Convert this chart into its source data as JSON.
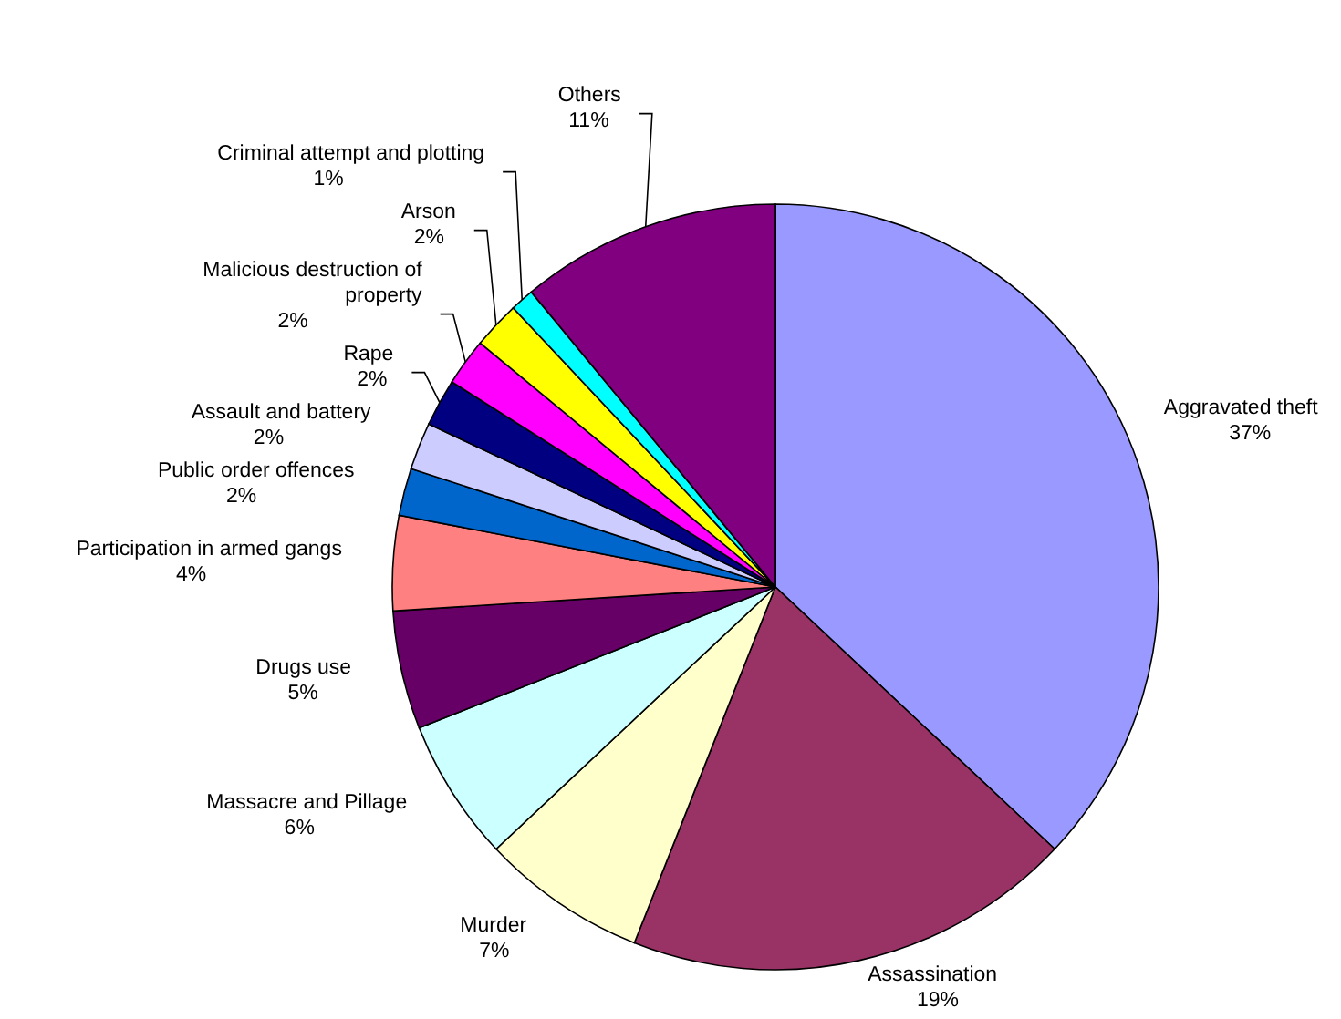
{
  "chart_data": {
    "type": "pie",
    "categories": [
      "Aggravated theft",
      "Assassination",
      "Murder",
      "Massacre and Pillage",
      "Drugs use",
      "Participation in armed gangs",
      "Public order offences",
      "Assault and battery",
      "Rape",
      "Malicious destruction of property",
      "Arson",
      "Criminal attempt and plotting",
      "Others"
    ],
    "values": [
      37,
      19,
      7,
      6,
      5,
      4,
      2,
      2,
      2,
      2,
      2,
      1,
      11
    ],
    "value_labels": [
      "37%",
      "19%",
      "7%",
      "6%",
      "5%",
      "4%",
      "2%",
      "2%",
      "2%",
      "2%",
      "2%",
      "1%",
      "11%"
    ],
    "colors": [
      "#9999ff",
      "#993366",
      "#ffffcc",
      "#ccffff",
      "#660066",
      "#ff8080",
      "#0066cc",
      "#ccccff",
      "#000080",
      "#ff00ff",
      "#ffff00",
      "#00ffff",
      "#800080"
    ]
  }
}
